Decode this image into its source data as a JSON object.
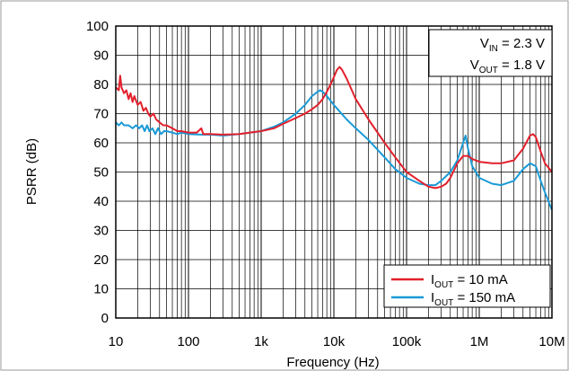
{
  "chart_data": {
    "type": "line",
    "title": "",
    "xlabel": "Frequency (Hz)",
    "ylabel": "PSRR (dB)",
    "xscale": "log",
    "xlim": [
      10,
      10000000
    ],
    "ylim": [
      0,
      100
    ],
    "grid": true,
    "x_ticks": [
      {
        "value": 10,
        "label": "10"
      },
      {
        "value": 100,
        "label": "100"
      },
      {
        "value": 1000,
        "label": "1k"
      },
      {
        "value": 10000,
        "label": "10k"
      },
      {
        "value": 100000,
        "label": "100k"
      },
      {
        "value": 1000000,
        "label": "1M"
      },
      {
        "value": 10000000,
        "label": "10M"
      }
    ],
    "y_ticks": [
      0,
      10,
      20,
      30,
      40,
      50,
      60,
      70,
      80,
      90,
      100
    ],
    "annotations": {
      "vin": {
        "main": "V",
        "sub": "IN",
        "rest": " = 2.3 V"
      },
      "vout": {
        "main": "V",
        "sub": "OUT",
        "rest": " = 1.8 V"
      }
    },
    "legend_position": "bottom-right",
    "series": [
      {
        "name_main": "I",
        "name_sub": "OUT",
        "name_rest": " = 10 mA",
        "color": "#e2202c",
        "points": [
          [
            10,
            79
          ],
          [
            11,
            78
          ],
          [
            11.5,
            83
          ],
          [
            12,
            79
          ],
          [
            13,
            77
          ],
          [
            14,
            78
          ],
          [
            15,
            75
          ],
          [
            16,
            77
          ],
          [
            17,
            74
          ],
          [
            18,
            76
          ],
          [
            20,
            73
          ],
          [
            22,
            74
          ],
          [
            24,
            71
          ],
          [
            26,
            72
          ],
          [
            28,
            70
          ],
          [
            30,
            69
          ],
          [
            33,
            70
          ],
          [
            36,
            68
          ],
          [
            40,
            67
          ],
          [
            45,
            66
          ],
          [
            50,
            66
          ],
          [
            60,
            65
          ],
          [
            70,
            64
          ],
          [
            80,
            64
          ],
          [
            100,
            63.5
          ],
          [
            130,
            63.5
          ],
          [
            150,
            65
          ],
          [
            160,
            63
          ],
          [
            200,
            63
          ],
          [
            300,
            62.8
          ],
          [
            500,
            63
          ],
          [
            700,
            63.5
          ],
          [
            1000,
            64
          ],
          [
            1500,
            65
          ],
          [
            2000,
            66.5
          ],
          [
            3000,
            68.5
          ],
          [
            4000,
            70
          ],
          [
            5000,
            71.5
          ],
          [
            6000,
            73
          ],
          [
            7000,
            75
          ],
          [
            8000,
            77.5
          ],
          [
            9000,
            80
          ],
          [
            10000,
            82.5
          ],
          [
            11000,
            85
          ],
          [
            12000,
            86
          ],
          [
            13000,
            85
          ],
          [
            15000,
            82
          ],
          [
            20000,
            75
          ],
          [
            30000,
            68
          ],
          [
            50000,
            60
          ],
          [
            70000,
            55
          ],
          [
            100000,
            50
          ],
          [
            150000,
            47
          ],
          [
            200000,
            45
          ],
          [
            250000,
            44.5
          ],
          [
            300000,
            45
          ],
          [
            350000,
            46
          ],
          [
            400000,
            48
          ],
          [
            500000,
            53
          ],
          [
            600000,
            55.5
          ],
          [
            700000,
            55.5
          ],
          [
            800000,
            54.5
          ],
          [
            1000000,
            53.5
          ],
          [
            1500000,
            53
          ],
          [
            2000000,
            53
          ],
          [
            3000000,
            54
          ],
          [
            4000000,
            58
          ],
          [
            5000000,
            62.5
          ],
          [
            5500000,
            63
          ],
          [
            6000000,
            62
          ],
          [
            7000000,
            57
          ],
          [
            8000000,
            53
          ],
          [
            10000000,
            50
          ]
        ]
      },
      {
        "name_main": "I",
        "name_sub": "OUT",
        "name_rest": " = 150 mA",
        "color": "#1a9ad6",
        "points": [
          [
            10,
            67
          ],
          [
            11,
            66
          ],
          [
            12,
            67
          ],
          [
            13,
            66
          ],
          [
            15,
            66
          ],
          [
            17,
            65
          ],
          [
            19,
            66
          ],
          [
            21,
            65
          ],
          [
            23,
            66
          ],
          [
            25,
            64
          ],
          [
            27,
            66
          ],
          [
            29,
            64
          ],
          [
            32,
            65
          ],
          [
            35,
            63
          ],
          [
            38,
            65
          ],
          [
            42,
            63
          ],
          [
            46,
            64
          ],
          [
            50,
            64
          ],
          [
            60,
            63.5
          ],
          [
            70,
            63
          ],
          [
            80,
            63.5
          ],
          [
            100,
            63
          ],
          [
            150,
            62.8
          ],
          [
            200,
            62.8
          ],
          [
            300,
            62.5
          ],
          [
            500,
            63
          ],
          [
            700,
            63.5
          ],
          [
            1000,
            64
          ],
          [
            1500,
            65.5
          ],
          [
            2000,
            67
          ],
          [
            3000,
            70
          ],
          [
            4000,
            73
          ],
          [
            5000,
            76
          ],
          [
            6000,
            77.5
          ],
          [
            6500,
            78
          ],
          [
            7000,
            77.5
          ],
          [
            8000,
            76
          ],
          [
            10000,
            73
          ],
          [
            15000,
            68
          ],
          [
            20000,
            65
          ],
          [
            30000,
            61
          ],
          [
            50000,
            55
          ],
          [
            70000,
            51
          ],
          [
            100000,
            48
          ],
          [
            150000,
            46
          ],
          [
            200000,
            45.5
          ],
          [
            250000,
            45.5
          ],
          [
            300000,
            47
          ],
          [
            400000,
            50
          ],
          [
            500000,
            54
          ],
          [
            600000,
            60
          ],
          [
            650000,
            62.5
          ],
          [
            700000,
            58
          ],
          [
            800000,
            52
          ],
          [
            1000000,
            48
          ],
          [
            1500000,
            46
          ],
          [
            2000000,
            45.5
          ],
          [
            3000000,
            47
          ],
          [
            4000000,
            51
          ],
          [
            5000000,
            53
          ],
          [
            6000000,
            52
          ],
          [
            7000000,
            47
          ],
          [
            8000000,
            43
          ],
          [
            10000000,
            37
          ]
        ]
      }
    ]
  }
}
